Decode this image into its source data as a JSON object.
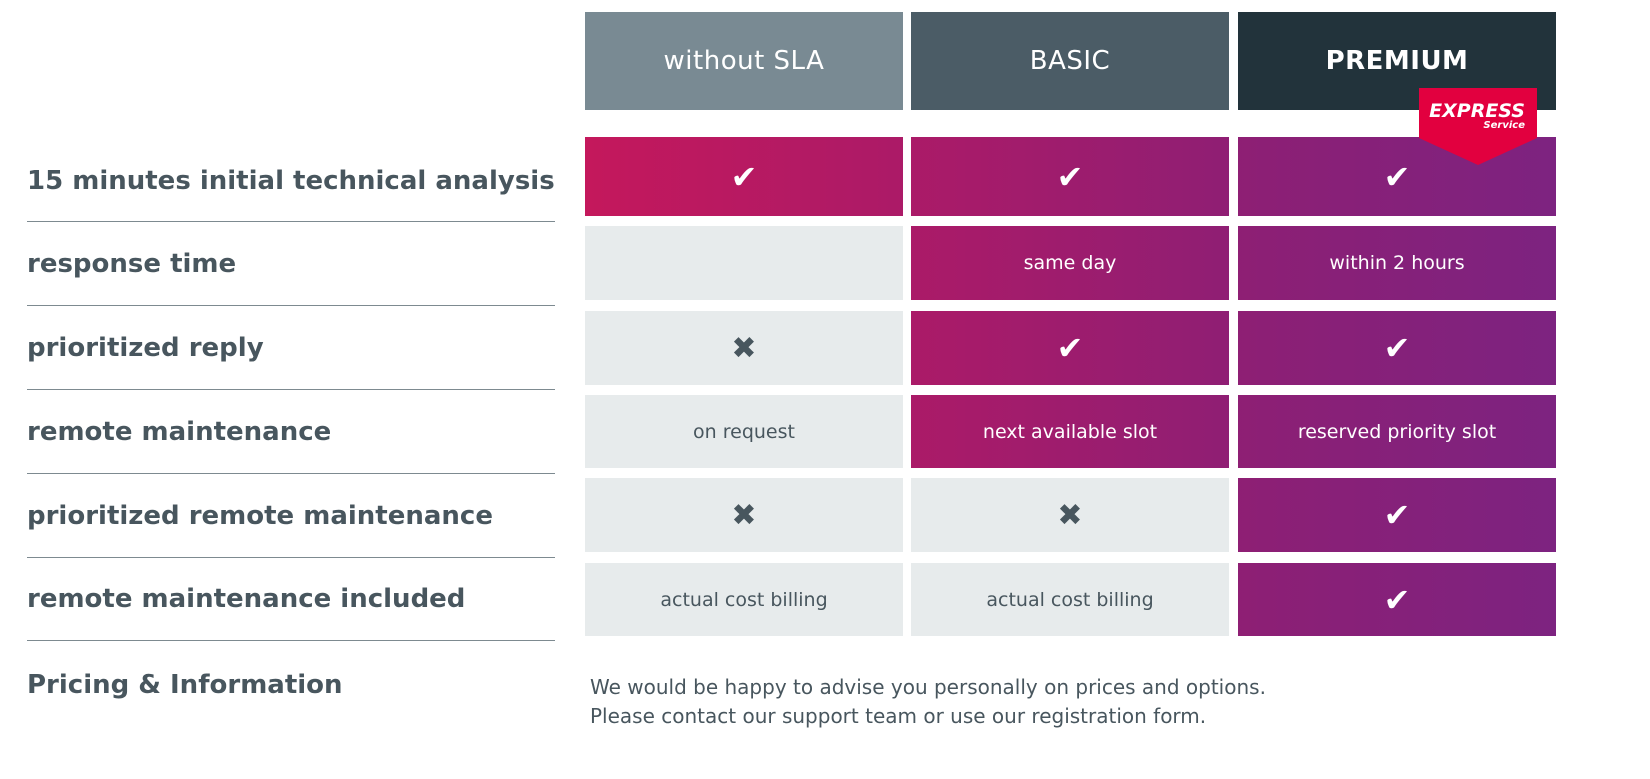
{
  "plans": [
    {
      "name": "without SLA",
      "color": "#798a93"
    },
    {
      "name": "BASIC",
      "color": "#4b5c66"
    },
    {
      "name": "PREMIUM",
      "color": "#22333b"
    }
  ],
  "badge": {
    "line1": "EXPRESS",
    "line2": "Service",
    "color": "#e2003f"
  },
  "rows": [
    {
      "label": "15 minutes initial technical analysis",
      "cells": [
        {
          "type": "check"
        },
        {
          "type": "check"
        },
        {
          "type": "check"
        }
      ]
    },
    {
      "label": "response time",
      "cells": [
        {
          "type": "empty"
        },
        {
          "type": "text",
          "text": "same day"
        },
        {
          "type": "text",
          "text": "within 2 hours"
        }
      ]
    },
    {
      "label": "prioritized reply",
      "cells": [
        {
          "type": "cross"
        },
        {
          "type": "check"
        },
        {
          "type": "check"
        }
      ]
    },
    {
      "label": "remote maintenance",
      "cells": [
        {
          "type": "text",
          "text": "on request"
        },
        {
          "type": "text",
          "text": "next available slot"
        },
        {
          "type": "text",
          "text": "reserved priority slot"
        }
      ]
    },
    {
      "label": "prioritized remote maintenance",
      "cells": [
        {
          "type": "cross"
        },
        {
          "type": "cross"
        },
        {
          "type": "check"
        }
      ]
    },
    {
      "label": "remote maintenance included",
      "cells": [
        {
          "type": "text",
          "text": "actual cost billing"
        },
        {
          "type": "text",
          "text": "actual cost billing"
        },
        {
          "type": "check"
        }
      ]
    }
  ],
  "highlighted": [
    [
      true,
      true,
      true
    ],
    [
      false,
      true,
      true
    ],
    [
      false,
      true,
      true
    ],
    [
      false,
      true,
      true
    ],
    [
      false,
      false,
      true
    ],
    [
      false,
      false,
      true
    ]
  ],
  "pricing": {
    "label": "Pricing & Information",
    "line1": "We would be happy to advise you personally on prices and options.",
    "line2": "Please contact our support team or use our registration form."
  }
}
